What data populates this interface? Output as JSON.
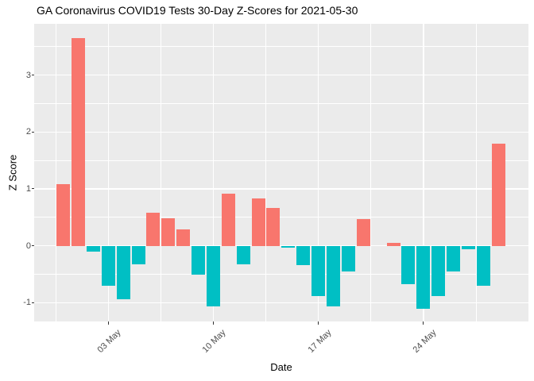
{
  "chart_data": {
    "type": "bar",
    "title": "GA Coronavirus COVID19 Tests 30-Day Z-Scores for 2021-05-30",
    "xlabel": "Date",
    "ylabel": "Z Score",
    "x": [
      "2021-04-30",
      "2021-05-01",
      "2021-05-02",
      "2021-05-03",
      "2021-05-04",
      "2021-05-05",
      "2021-05-06",
      "2021-05-07",
      "2021-05-08",
      "2021-05-09",
      "2021-05-10",
      "2021-05-11",
      "2021-05-12",
      "2021-05-13",
      "2021-05-14",
      "2021-05-15",
      "2021-05-16",
      "2021-05-17",
      "2021-05-18",
      "2021-05-19",
      "2021-05-20",
      "2021-05-21",
      "2021-05-22",
      "2021-05-23",
      "2021-05-24",
      "2021-05-25",
      "2021-05-26",
      "2021-05-27",
      "2021-05-28",
      "2021-05-29"
    ],
    "values": [
      1.08,
      3.65,
      -0.1,
      -0.7,
      -0.94,
      -0.33,
      0.58,
      0.48,
      0.29,
      -0.51,
      -1.07,
      0.92,
      -0.33,
      0.83,
      0.67,
      -0.03,
      -0.34,
      -0.88,
      -1.06,
      -0.45,
      0.47,
      0.0,
      0.05,
      -0.67,
      -1.11,
      -0.89,
      -0.45,
      -0.06,
      -0.7,
      1.8
    ],
    "bar_color_positive": "#F8766D",
    "bar_color_negative": "#00BFC4",
    "panel_background": "#EBEBEB",
    "grid_color": "#FFFFFF",
    "outer_background": "#FFFFFF",
    "tick_label_color": "#4d4d4d",
    "legend": "none",
    "grid": "on",
    "ylim": [
      -1.33,
      3.9
    ],
    "xlim_day_index": [
      -1.94,
      31.0
    ],
    "bar_width_fraction": 0.9,
    "yticks": [
      3,
      2,
      1,
      0,
      -1
    ],
    "ytick_labels": [
      "3",
      "2",
      "1",
      "0",
      "-1"
    ],
    "yticks_minor": [
      3.5,
      2.5,
      1.5,
      0.5,
      -0.5
    ],
    "xticks": [
      {
        "label": "03 May",
        "day_index": 3
      },
      {
        "label": "10 May",
        "day_index": 10
      },
      {
        "label": "17 May",
        "day_index": 17
      },
      {
        "label": "24 May",
        "day_index": 24
      }
    ],
    "xticks_minor_day_index": [
      -0.5,
      6.5,
      13.5,
      20.5,
      27.5
    ]
  }
}
